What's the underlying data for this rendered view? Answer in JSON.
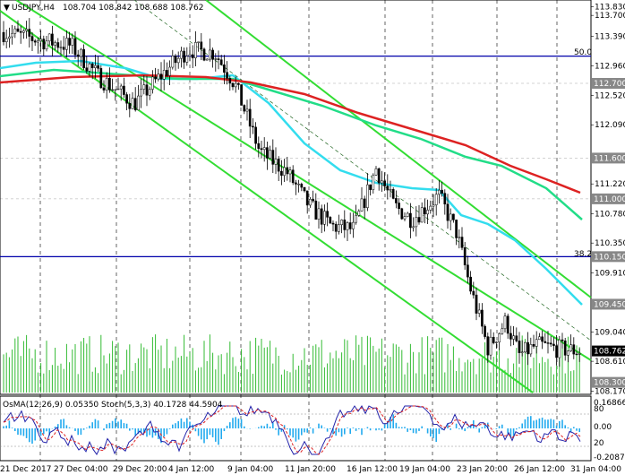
{
  "header": {
    "symbol_label": "USDJPY,H4",
    "ohlc": "108.704 108.842 108.688 108.762",
    "dropdown_glyph": "▼"
  },
  "price_axis": {
    "ticks": [
      "113.830",
      "113.700",
      "113.390",
      "112.960",
      "112.700",
      "112.520",
      "112.090",
      "111.600",
      "111.220",
      "111.000",
      "110.780",
      "110.350",
      "110.150",
      "109.910",
      "109.450",
      "109.040",
      "108.762",
      "108.610",
      "108.300",
      "108.170"
    ],
    "highlighted": {
      "113.100": "#cc0000",
      "112.700": "#888888",
      "111.600": "#888888",
      "111.000": "#888888",
      "110.150": "#888888",
      "109.450": "#888888",
      "108.300": "#888888",
      "108.762": "#000000"
    }
  },
  "fib_levels": [
    {
      "label": "50.0",
      "price": 113.1,
      "color": "#0000aa"
    },
    {
      "label": "38.2",
      "price": 110.15,
      "color": "#0000aa"
    }
  ],
  "indicator": {
    "label": "OsMA(12,26,9) 0.05350 Stoch(5,3,3) 40.1728 44.5904",
    "axis_ticks": [
      "0.16866",
      "80",
      "0.00",
      "20",
      "-0.20878"
    ]
  },
  "time_axis": {
    "labels": [
      "21 Dec 2017",
      "27 Dec 04:00",
      "29 Dec 20:00",
      "4 Jan 12:00",
      "9 Jan 04:00",
      "11 Jan 20:00",
      "16 Jan 12:00",
      "19 Jan 04:00",
      "23 Jan 20:00",
      "26 Jan 12:00",
      "31 Jan 04:00"
    ]
  },
  "colors": {
    "ma_fast": "#33ddee",
    "ma_mid": "#22dd88",
    "ma_slow": "#dd2222",
    "channel": "#33dd33",
    "candle": "#000000",
    "volume": "#33bb33",
    "osma": "#22aaee",
    "stoch_main": "#2222aa",
    "stoch_signal": "#dd2222"
  }
}
